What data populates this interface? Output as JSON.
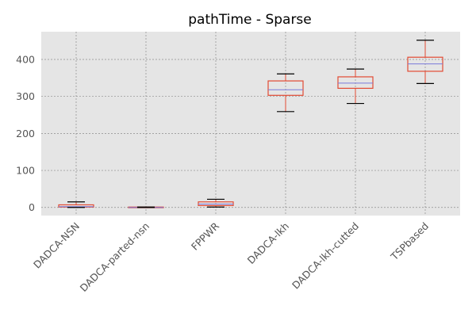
{
  "chart_data": {
    "type": "box",
    "title": "pathTime - Sparse",
    "xlabel": "",
    "ylabel": "",
    "ylim": [
      -22,
      475
    ],
    "yticks": [
      0,
      100,
      200,
      300,
      400
    ],
    "grid": true,
    "categories": [
      "DADCA-NSN",
      "DADCA-parted-nsn",
      "FPPWR",
      "DADCA-lkh",
      "DADCA-lkh-cutted",
      "TSPbased"
    ],
    "boxes": [
      {
        "whisker_low": 0,
        "q1": 1,
        "median": 2,
        "q3": 7,
        "whisker_high": 15
      },
      {
        "whisker_low": 0,
        "q1": 0,
        "median": 0,
        "q3": 1,
        "whisker_high": 1
      },
      {
        "whisker_low": 1,
        "q1": 5,
        "median": 9,
        "q3": 15,
        "whisker_high": 22
      },
      {
        "whisker_low": 259,
        "q1": 303,
        "median": 318,
        "q3": 342,
        "whisker_high": 361
      },
      {
        "whisker_low": 281,
        "q1": 322,
        "median": 336,
        "q3": 353,
        "whisker_high": 374
      },
      {
        "whisker_low": 335,
        "q1": 368,
        "median": 388,
        "q3": 406,
        "whisker_high": 452
      }
    ],
    "colors": {
      "plot_background": "#e5e5e5",
      "grid": "#8c8c8c",
      "box": "#e24a33",
      "median": "#7a7ad9",
      "whisker_cap": "#000000",
      "tick_label": "#555555"
    }
  }
}
